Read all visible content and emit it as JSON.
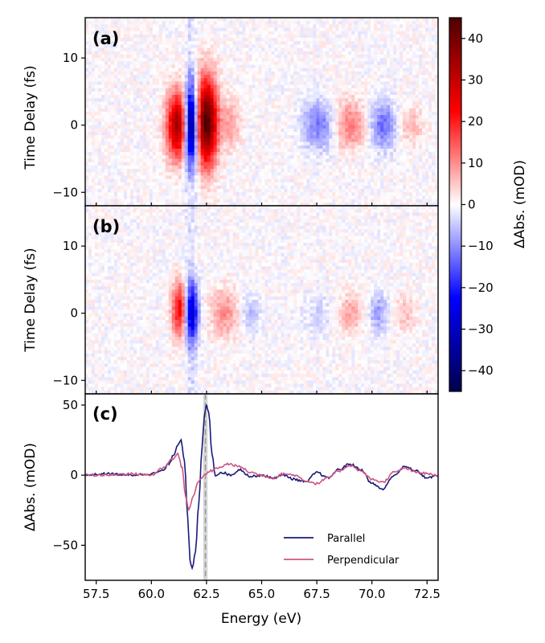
{
  "chart_data": {
    "type": "heatmap",
    "colormap": "seismic",
    "shared_x": {
      "label": "Energy (eV)",
      "range": [
        57.0,
        73.0
      ],
      "ticks": [
        57.5,
        60.0,
        62.5,
        65.0,
        67.5,
        70.0,
        72.5
      ],
      "tick_labels": [
        "57.5",
        "60.0",
        "62.5",
        "65.0",
        "67.5",
        "70.0",
        "72.5"
      ]
    },
    "colorbar": {
      "label": "ΔAbs. (mOD)",
      "range": [
        -45,
        45
      ],
      "ticks": [
        40,
        30,
        20,
        10,
        0,
        -10,
        -20,
        -30,
        -40
      ],
      "tick_labels": [
        "40",
        "30",
        "20",
        "10",
        "0",
        "−10",
        "−20",
        "−30",
        "−40"
      ]
    },
    "panels": [
      {
        "id": "a",
        "label": "(a)",
        "type": "heatmap",
        "ylabel": "Time Delay (fs)",
        "ylim": [
          -12,
          16
        ],
        "yticks": [
          10,
          0,
          -10
        ],
        "ytick_labels": [
          "10",
          "0",
          "−10"
        ],
        "features": [
          {
            "energy": 61.2,
            "delay": 0,
            "amplitude": 35,
            "sigma_e": 0.35,
            "sigma_t": 3.5
          },
          {
            "energy": 61.8,
            "delay": 0,
            "amplitude": -45,
            "sigma_e": 0.22,
            "sigma_t": 4.0
          },
          {
            "energy": 62.5,
            "delay": 0.5,
            "amplitude": 45,
            "sigma_e": 0.35,
            "sigma_t": 4.5
          },
          {
            "energy": 63.6,
            "delay": 0,
            "amplitude": 8,
            "sigma_e": 0.3,
            "sigma_t": 2.5
          },
          {
            "energy": 67.6,
            "delay": 0,
            "amplitude": -12,
            "sigma_e": 0.5,
            "sigma_t": 2.5
          },
          {
            "energy": 69.0,
            "delay": 0,
            "amplitude": 12,
            "sigma_e": 0.5,
            "sigma_t": 2.5
          },
          {
            "energy": 70.5,
            "delay": 0,
            "amplitude": -13,
            "sigma_e": 0.4,
            "sigma_t": 2.5
          },
          {
            "energy": 71.8,
            "delay": 0,
            "amplitude": 6,
            "sigma_e": 0.4,
            "sigma_t": 2.0
          }
        ]
      },
      {
        "id": "b",
        "label": "(b)",
        "type": "heatmap",
        "ylabel": "Time Delay (fs)",
        "ylim": [
          -12,
          16
        ],
        "yticks": [
          10,
          0,
          -10
        ],
        "ytick_labels": [
          "10",
          "0",
          "−10"
        ],
        "features": [
          {
            "energy": 61.3,
            "delay": 0.5,
            "amplitude": 25,
            "sigma_e": 0.25,
            "sigma_t": 2.8
          },
          {
            "energy": 61.8,
            "delay": 0,
            "amplitude": -30,
            "sigma_e": 0.22,
            "sigma_t": 3.0
          },
          {
            "energy": 63.3,
            "delay": 0,
            "amplitude": 10,
            "sigma_e": 0.45,
            "sigma_t": 2.5
          },
          {
            "energy": 64.5,
            "delay": 0,
            "amplitude": -6,
            "sigma_e": 0.3,
            "sigma_t": 2.0
          },
          {
            "energy": 67.6,
            "delay": 0,
            "amplitude": -4,
            "sigma_e": 0.5,
            "sigma_t": 2.0
          },
          {
            "energy": 69.0,
            "delay": 0,
            "amplitude": 8,
            "sigma_e": 0.4,
            "sigma_t": 2.0
          },
          {
            "energy": 70.3,
            "delay": 0,
            "amplitude": -9,
            "sigma_e": 0.3,
            "sigma_t": 2.0
          },
          {
            "energy": 71.5,
            "delay": 0,
            "amplitude": 5,
            "sigma_e": 0.4,
            "sigma_t": 2.0
          }
        ]
      },
      {
        "id": "c",
        "label": "(c)",
        "type": "line",
        "ylabel": "ΔAbs. (mOD)",
        "ylim": [
          -75,
          58
        ],
        "yticks": [
          50,
          0,
          -50
        ],
        "ytick_labels": [
          "50",
          "0",
          "−50"
        ],
        "legend": {
          "placement": "bottom-right"
        },
        "vertical_line": {
          "energy": 62.45,
          "style": "dashed"
        },
        "vertical_band": [
          62.35,
          62.55
        ],
        "series": [
          {
            "name": "Parallel",
            "color": "#1a1a7a",
            "x": [
              57.0,
              58.0,
              59.0,
              60.0,
              60.5,
              60.8,
              61.0,
              61.2,
              61.35,
              61.5,
              61.65,
              61.75,
              61.85,
              62.0,
              62.15,
              62.3,
              62.4,
              62.5,
              62.6,
              62.75,
              62.9,
              63.2,
              63.6,
              64.0,
              64.5,
              65.0,
              65.5,
              66.0,
              66.5,
              67.0,
              67.5,
              68.0,
              68.5,
              69.0,
              69.5,
              70.0,
              70.5,
              71.0,
              71.5,
              72.0,
              72.5,
              73.0
            ],
            "y": [
              0,
              1,
              0,
              1,
              3,
              8,
              14,
              22,
              25,
              10,
              -30,
              -60,
              -67,
              -55,
              -20,
              20,
              42,
              50,
              45,
              15,
              0,
              2,
              0,
              4,
              -1,
              0,
              -2,
              0,
              -3,
              -5,
              2,
              -2,
              4,
              8,
              4,
              -6,
              -10,
              0,
              6,
              3,
              -2,
              0
            ]
          },
          {
            "name": "Perpendicular",
            "color": "#cc5580",
            "x": [
              57.0,
              58.0,
              59.0,
              60.0,
              60.5,
              61.0,
              61.2,
              61.4,
              61.55,
              61.7,
              61.9,
              62.1,
              62.4,
              62.7,
              63.0,
              63.5,
              64.0,
              64.5,
              65.0,
              65.5,
              66.0,
              66.5,
              67.0,
              67.5,
              68.0,
              68.5,
              69.0,
              69.5,
              70.0,
              70.5,
              71.0,
              71.5,
              72.0,
              73.0
            ],
            "y": [
              0,
              0,
              1,
              0,
              5,
              12,
              15,
              5,
              -15,
              -25,
              -15,
              -5,
              0,
              3,
              5,
              8,
              6,
              2,
              0,
              -2,
              1,
              0,
              -4,
              -6,
              -2,
              3,
              7,
              3,
              -3,
              -5,
              2,
              5,
              2,
              0
            ]
          }
        ]
      }
    ]
  }
}
